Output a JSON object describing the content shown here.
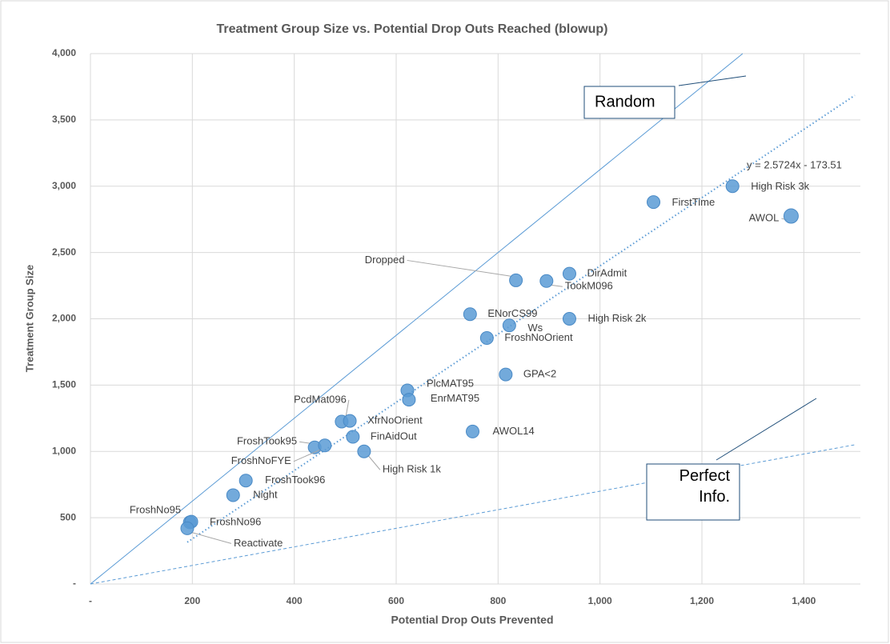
{
  "chart_data": {
    "type": "scatter",
    "title": "Treatment Group Size vs. Potential Drop Outs Reached (blowup)",
    "x_label": "Potential Drop Outs Prevented",
    "y_label": "Treatment Group Size",
    "color": "#5b9bd5",
    "grid": true,
    "xlim": [
      0,
      1500
    ],
    "ylim": [
      0,
      4000
    ],
    "xticks": [
      {
        "value": 0,
        "label": "-"
      },
      200,
      400,
      600,
      800,
      {
        "value": 1000,
        "label": "1,000"
      },
      {
        "value": 1200,
        "label": "1,200"
      },
      {
        "value": 1400,
        "label": "1,400"
      }
    ],
    "yticks": [
      {
        "value": 0,
        "label": "-"
      },
      500,
      {
        "value": 1000,
        "label": "1,000"
      },
      {
        "value": 1500,
        "label": "1,500"
      },
      {
        "value": 2000,
        "label": "2,000"
      },
      {
        "value": 2500,
        "label": "2,500"
      },
      {
        "value": 3000,
        "label": "3,000"
      },
      {
        "value": 3500,
        "label": "3,500"
      },
      {
        "value": 4000,
        "label": "4,000"
      }
    ],
    "labels": [
      "High Risk 3k",
      "AWOL",
      "FirstTime",
      "Dropped",
      "DirAdmit",
      "TookM096",
      "High Risk 2k",
      "ENorCS99",
      "Ws",
      "FroshNoOrient",
      "GPA<2",
      "PlcMAT95",
      "EnrMAT95",
      "PcdMat096",
      "XfrNoOrient",
      "FinAidOut",
      "High Risk 1k",
      "AWOL14",
      "FroshTook95",
      "FroshNoFYE",
      "FroshTook96",
      "Night",
      "FroshNo95",
      "FroshNo96",
      "Reactivate"
    ],
    "x": [
      1260,
      1375,
      1105,
      835,
      940,
      895,
      940,
      745,
      822,
      778,
      815,
      622,
      625,
      493,
      509,
      515,
      537,
      750,
      440,
      460,
      305,
      280,
      195,
      198,
      190
    ],
    "y": [
      3000,
      2775,
      2880,
      2290,
      2340,
      2285,
      2000,
      2035,
      1950,
      1855,
      1580,
      1460,
      1390,
      1225,
      1230,
      1110,
      1000,
      1150,
      1030,
      1045,
      780,
      670,
      465,
      470,
      420
    ],
    "lines": [
      {
        "name": "Random",
        "x": [
          0,
          1280
        ],
        "y": [
          0,
          4000
        ]
      },
      {
        "name": "Perfect Info.",
        "x": [
          0,
          1500
        ],
        "y": [
          0,
          1050
        ]
      }
    ],
    "trendline": {
      "label": "y = 2.5724x - 173.51",
      "slope": 2.5724,
      "intercept": -173.51,
      "x": [
        190,
        1500
      ]
    }
  }
}
